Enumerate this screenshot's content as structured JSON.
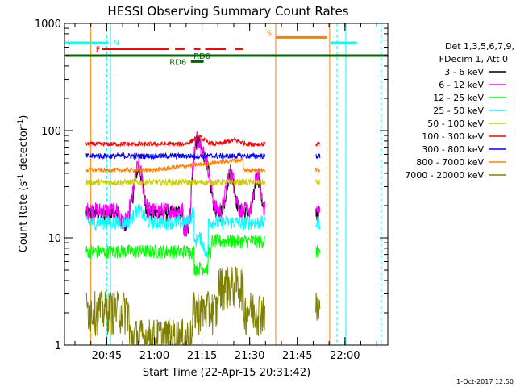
{
  "chart_data": {
    "type": "line",
    "title": "HESSI Observing Summary Count Rates",
    "xlabel": "Start Time (22-Apr-15 20:31:42)",
    "ylabel_main": "Count Rate (s",
    "ylabel_sup1": "-1",
    "ylabel_mid": " detector",
    "ylabel_sup2": "-1",
    "ylabel_end": ")",
    "yscale": "log",
    "ylim": [
      1,
      1000
    ],
    "xlim_minutes": [
      31.7,
      133.5
    ],
    "x_ticks": [
      {
        "minute": 45,
        "label": "20:45"
      },
      {
        "minute": 60,
        "label": "21:00"
      },
      {
        "minute": 75,
        "label": "21:15"
      },
      {
        "minute": 90,
        "label": "21:30"
      },
      {
        "minute": 105,
        "label": "21:45"
      },
      {
        "minute": 120,
        "label": "22:00"
      }
    ],
    "y_ticks": [
      {
        "value": 1,
        "label": "1"
      },
      {
        "value": 10,
        "label": "10"
      },
      {
        "value": 100,
        "label": "100"
      },
      {
        "value": 1000,
        "label": "1000"
      }
    ],
    "legend_header": [
      "Det 1,3,5,6,7,9,",
      "FDecim 1, Att 0"
    ],
    "series": [
      {
        "name": "3 - 6 keV",
        "color": "#000000",
        "base": 17
      },
      {
        "name": "6 - 12 keV",
        "color": "#ff00ff",
        "base": 18
      },
      {
        "name": "12 - 25 keV",
        "color": "#00ff00",
        "base": 7.5
      },
      {
        "name": "25 - 50 keV",
        "color": "#00ffff",
        "base": 14
      },
      {
        "name": "50 - 100 keV",
        "color": "#cccc00",
        "base": 33
      },
      {
        "name": "100 - 300 keV",
        "color": "#ff0000",
        "base": 75
      },
      {
        "name": "300 - 800 keV",
        "color": "#0000ff",
        "base": 58
      },
      {
        "name": "800 - 7000 keV",
        "color": "#ff8000",
        "base": 43
      },
      {
        "name": "7000 - 20000 keV",
        "color": "#808000",
        "base": 2.2
      }
    ],
    "data_intervals_minutes": [
      [
        38.5,
        94.8
      ],
      [
        110.8,
        112.2
      ]
    ],
    "flags": [
      {
        "label": "N",
        "color": "#00ffff",
        "level": 660,
        "segments": [
          [
            32,
            45.5
          ],
          [
            115.5,
            123.8
          ]
        ]
      },
      {
        "label": "F",
        "color": "#ff0000",
        "level": 580,
        "segments": [
          [
            43.5,
            64.5
          ],
          [
            66.5,
            69.5
          ],
          [
            72.5,
            74.5
          ],
          [
            76.0,
            82.5
          ],
          [
            85.5,
            88.0
          ]
        ]
      },
      {
        "label": "S",
        "color": "#ff8000",
        "level": 740,
        "segments": [
          [
            98.2,
            114.5
          ]
        ]
      },
      {
        "label": "RD6",
        "color": "#006600",
        "level": 440,
        "segments": [
          [
            71.5,
            75.5
          ]
        ]
      },
      {
        "label": "RD0",
        "color": "#006600",
        "level": 500,
        "segments": [
          [
            32,
            133.5
          ]
        ]
      }
    ],
    "vlines": [
      {
        "minute": 31.7,
        "color": "#00ffff",
        "dashed": false
      },
      {
        "minute": 40.0,
        "color": "#ff8000",
        "dashed": false
      },
      {
        "minute": 45.0,
        "color": "#00ffff",
        "dashed": true
      },
      {
        "minute": 46.2,
        "color": "#00ffff",
        "dashed": false
      },
      {
        "minute": 98.2,
        "color": "#ff8000",
        "dashed": false
      },
      {
        "minute": 114.3,
        "color": "#00ffff",
        "dashed": true
      },
      {
        "minute": 115.2,
        "color": "#ff8000",
        "dashed": false
      },
      {
        "minute": 117.5,
        "color": "#00ffff",
        "dashed": true
      },
      {
        "minute": 120.3,
        "color": "#00ffff",
        "dashed": false
      },
      {
        "minute": 131.3,
        "color": "#00ffff",
        "dashed": true
      }
    ]
  },
  "footer": {
    "timestamp": "1-Oct-2017 12:50"
  }
}
